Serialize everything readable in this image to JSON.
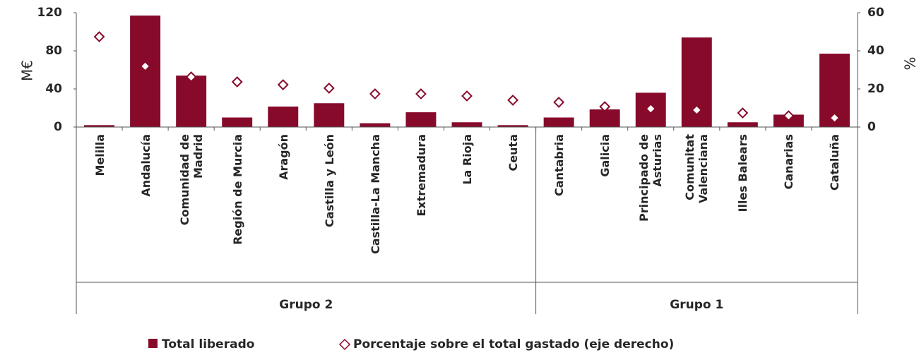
{
  "chart_data": {
    "type": "bar_line",
    "y_label": "M€",
    "y2_label": "%",
    "groups": [
      {
        "name": "Grupo 2",
        "categories": [
          "Melilla",
          "Andalucía",
          "Comunidad de Madrid",
          "Región de Murcia",
          "Aragón",
          "Castilla y León",
          "Castilla-La Mancha",
          "Extremadura",
          "La Rioja",
          "Ceuta"
        ]
      },
      {
        "name": "Grupo 1",
        "categories": [
          "Cantabria",
          "Galicia",
          "Principado de Asturias",
          "Comunitat Valenciana",
          "Illes Balears",
          "Canarias",
          "Cataluña"
        ]
      }
    ],
    "series": [
      {
        "name": "Total liberado",
        "color": "#870a2b",
        "type": "bar",
        "values": [
          2,
          117,
          54,
          10,
          21.5,
          25,
          4,
          15.5,
          5,
          2,
          10,
          18.5,
          36,
          94,
          5,
          13,
          77
        ]
      },
      {
        "name": "Porcentaje sobre el total gastado (eje derecho)",
        "color": "#870a2b",
        "type": "marker",
        "axis": "y2",
        "values": [
          47.4,
          31.9,
          26.3,
          23.7,
          22.2,
          20.4,
          17.4,
          17.4,
          16.3,
          14.1,
          13,
          10.7,
          9.6,
          8.9,
          7.4,
          5.9,
          4.8
        ]
      }
    ],
    "ylim": [
      0,
      120
    ],
    "yticks": [
      0,
      40,
      80,
      120
    ],
    "y2lim": [
      0,
      60
    ],
    "y2ticks": [
      0,
      20,
      40,
      60
    ]
  }
}
